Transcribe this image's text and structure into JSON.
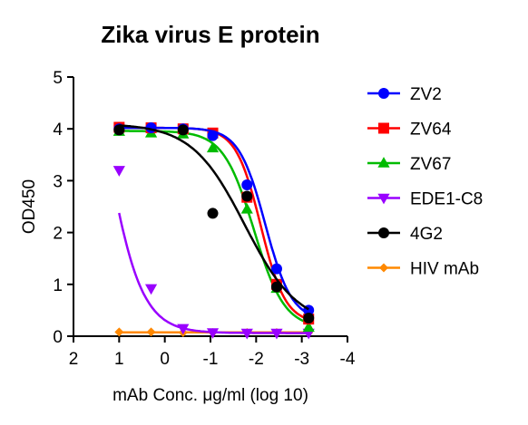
{
  "chart_data": {
    "type": "line",
    "title": "Zika virus E protein",
    "xlabel": "mAb Conc. μg/ml (log 10)",
    "ylabel": "OD450",
    "xlim": [
      2,
      -4
    ],
    "ylim": [
      0,
      5
    ],
    "x_ticks": [
      "2",
      "1",
      "0",
      "-1",
      "-2",
      "-3",
      "-4"
    ],
    "y_ticks": [
      "0",
      "1",
      "2",
      "3",
      "4",
      "5"
    ],
    "legend_position": "right",
    "series": [
      {
        "name": "ZV2",
        "color": "#0000ff",
        "marker": "circle",
        "x": [
          1,
          0.3,
          -0.4,
          -1.05,
          -1.8,
          -2.45,
          -3.15
        ],
        "y": [
          4.0,
          4.02,
          4.0,
          3.87,
          2.92,
          1.3,
          0.5
        ],
        "fit": {
          "top": 4.02,
          "bottom": 0.3,
          "logec50": -2.2,
          "hill": 1.5
        }
      },
      {
        "name": "ZV64",
        "color": "#ff0000",
        "marker": "square",
        "x": [
          1,
          0.3,
          -0.4,
          -1.05,
          -1.8,
          -2.45,
          -3.15
        ],
        "y": [
          4.03,
          4.02,
          4.0,
          3.92,
          2.68,
          1.0,
          0.33
        ],
        "fit": {
          "top": 4.02,
          "bottom": 0.25,
          "logec50": -2.1,
          "hill": 1.6
        }
      },
      {
        "name": "ZV67",
        "color": "#00bb00",
        "marker": "triangle-up",
        "x": [
          1,
          0.3,
          -0.4,
          -1.05,
          -1.8,
          -2.45,
          -3.15
        ],
        "y": [
          3.95,
          3.92,
          3.9,
          3.63,
          2.45,
          0.92,
          0.17
        ],
        "fit": {
          "top": 3.96,
          "bottom": 0.15,
          "logec50": -1.95,
          "hill": 1.3
        }
      },
      {
        "name": "EDE1-C8",
        "color": "#9900ff",
        "marker": "triangle-down",
        "x": [
          1,
          0.3,
          -0.4,
          -1.05,
          -1.8,
          -2.45,
          -3.15
        ],
        "y": [
          3.2,
          0.92,
          0.15,
          0.07,
          0.06,
          0.06,
          0.06
        ],
        "fit": {
          "top": 8.0,
          "bottom": 0.06,
          "logec50": 1.35,
          "hill": 1.1
        }
      },
      {
        "name": "4G2",
        "color": "#000000",
        "marker": "circle",
        "x": [
          1,
          -0.4,
          -1.05,
          -1.8,
          -2.45,
          -3.15
        ],
        "y": [
          3.98,
          3.98,
          2.37,
          2.7,
          0.95,
          0.35
        ],
        "fit": {
          "top": 4.1,
          "bottom": 0.2,
          "logec50": -1.75,
          "hill": 0.75
        }
      },
      {
        "name": "HIV mAb",
        "color": "#ff8800",
        "marker": "diamond",
        "x": [
          1,
          0.3,
          -0.4,
          -1.05,
          -1.8,
          -2.45,
          -3.15
        ],
        "y": [
          0.08,
          0.08,
          0.07,
          0.07,
          0.07,
          0.07,
          0.07
        ],
        "fit": {
          "flat": 0.075
        }
      }
    ]
  }
}
